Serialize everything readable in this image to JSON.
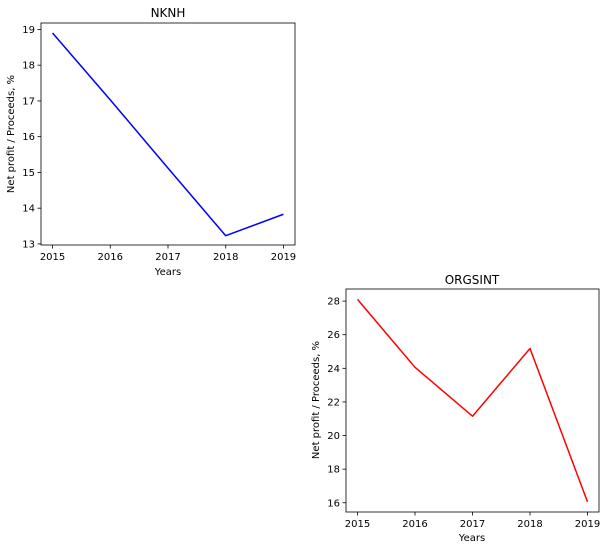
{
  "chart_data": [
    {
      "type": "line",
      "title": "NKNH",
      "xlabel": "Years",
      "ylabel": "Net profit / Proceeds, %",
      "x": [
        2015,
        2016,
        2017,
        2018,
        2019
      ],
      "series": [
        {
          "values": [
            18.9,
            17.03,
            15.12,
            13.23,
            13.83
          ],
          "color": "#0000ff"
        }
      ],
      "xlim": [
        2014.8,
        2019.2
      ],
      "ylim": [
        12.97,
        19.18
      ],
      "xticks": [
        "2015",
        "2016",
        "2017",
        "2018",
        "2019"
      ],
      "yticks": [
        "13",
        "14",
        "15",
        "16",
        "17",
        "18",
        "19"
      ],
      "grid": false,
      "legend": "none"
    },
    {
      "type": "line",
      "title": "ORGSINT",
      "xlabel": "Years",
      "ylabel": "Net profit / Proceeds, %",
      "x": [
        2015,
        2016,
        2017,
        2018,
        2019
      ],
      "series": [
        {
          "values": [
            28.1,
            24.06,
            21.15,
            25.18,
            16.05
          ],
          "color": "#ff0000"
        }
      ],
      "xlim": [
        2014.8,
        2019.2
      ],
      "ylim": [
        15.45,
        28.72
      ],
      "xticks": [
        "2015",
        "2016",
        "2017",
        "2018",
        "2019"
      ],
      "yticks": [
        "16",
        "18",
        "20",
        "22",
        "24",
        "26",
        "28"
      ],
      "grid": false,
      "legend": "none"
    }
  ]
}
